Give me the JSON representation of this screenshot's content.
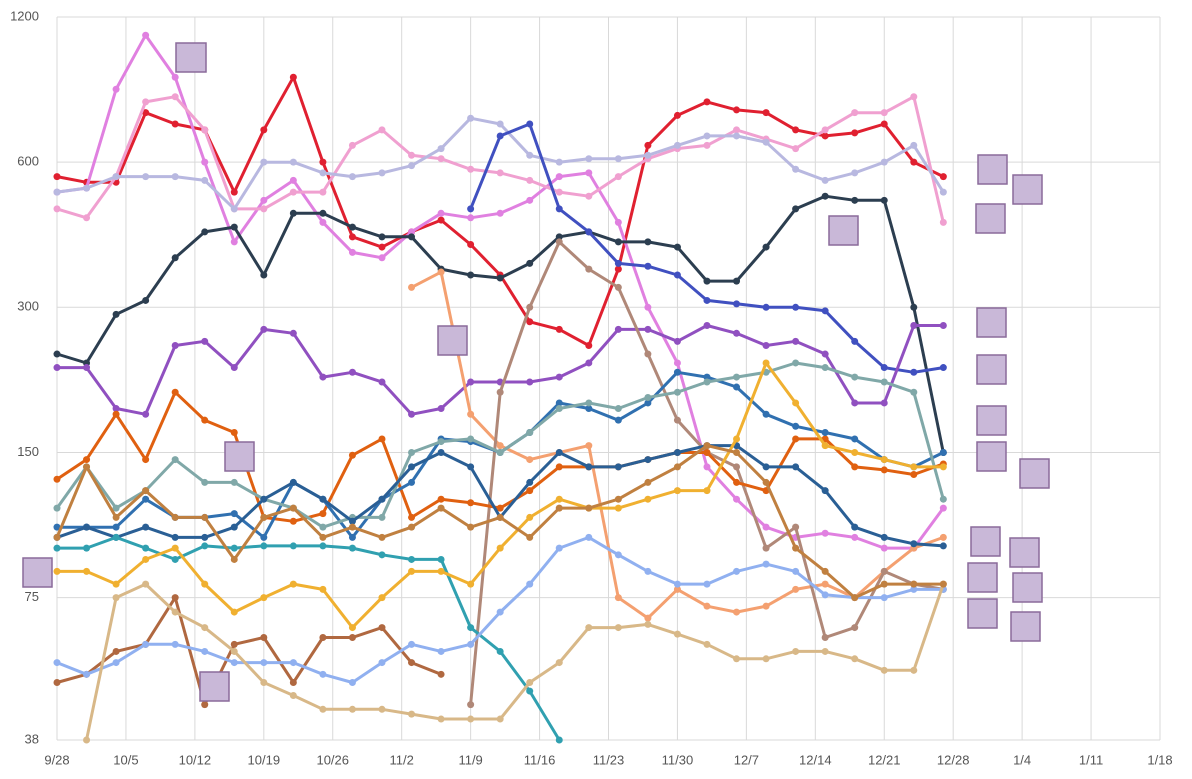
{
  "chart_data": {
    "type": "line",
    "log_y": true,
    "grid": true,
    "x": [
      0,
      3,
      6,
      9,
      12,
      15,
      18,
      21,
      24,
      27,
      30,
      33,
      36,
      39,
      42,
      45,
      48,
      51,
      54,
      57,
      60,
      63,
      66,
      69,
      72,
      75,
      78,
      81,
      84,
      87,
      90
    ],
    "xlim": [
      0,
      112
    ],
    "xticks": [
      {
        "value": 0,
        "label": "9/28"
      },
      {
        "value": 7,
        "label": "10/5"
      },
      {
        "value": 14,
        "label": "10/12"
      },
      {
        "value": 21,
        "label": "10/19"
      },
      {
        "value": 28,
        "label": "10/26"
      },
      {
        "value": 35,
        "label": "11/2"
      },
      {
        "value": 42,
        "label": "11/9"
      },
      {
        "value": 49,
        "label": "11/16"
      },
      {
        "value": 56,
        "label": "11/23"
      },
      {
        "value": 63,
        "label": "11/30"
      },
      {
        "value": 70,
        "label": "12/7"
      },
      {
        "value": 77,
        "label": "12/14"
      },
      {
        "value": 84,
        "label": "12/21"
      },
      {
        "value": 91,
        "label": "12/28"
      },
      {
        "value": 98,
        "label": "1/4"
      },
      {
        "value": 105,
        "label": "1/11"
      },
      {
        "value": 112,
        "label": "1/18"
      }
    ],
    "ylim": [
      38,
      1200
    ],
    "yticks": [
      38,
      75,
      150,
      300,
      600,
      1200
    ],
    "series": [
      {
        "color": "#e02030",
        "values": [
          560,
          545,
          545,
          760,
          720,
          700,
          520,
          700,
          900,
          600,
          420,
          400,
          430,
          455,
          405,
          350,
          280,
          270,
          250,
          360,
          650,
          750,
          800,
          770,
          760,
          700,
          680,
          690,
          720,
          600,
          560
        ]
      },
      {
        "color": "#e080e0",
        "values": [
          520,
          530,
          850,
          1100,
          900,
          600,
          410,
          500,
          550,
          450,
          390,
          380,
          430,
          470,
          460,
          470,
          500,
          560,
          570,
          450,
          300,
          230,
          140,
          120,
          105,
          100,
          102,
          100,
          95,
          95,
          115
        ]
      },
      {
        "color": "#f0a0d0",
        "values": [
          480,
          460,
          560,
          800,
          820,
          700,
          480,
          480,
          520,
          520,
          650,
          700,
          620,
          610,
          580,
          570,
          550,
          520,
          510,
          560,
          610,
          640,
          650,
          700,
          670,
          640,
          700,
          760,
          760,
          820,
          450
        ]
      },
      {
        "color": "#b8b8e0",
        "values": [
          520,
          530,
          560,
          560,
          560,
          550,
          480,
          600,
          600,
          570,
          560,
          570,
          590,
          640,
          740,
          720,
          620,
          600,
          610,
          610,
          620,
          650,
          680,
          680,
          660,
          580,
          550,
          570,
          600,
          650,
          520
        ]
      },
      {
        "color": "#2c3e50",
        "values": [
          240,
          230,
          290,
          310,
          380,
          430,
          440,
          350,
          470,
          470,
          440,
          420,
          420,
          360,
          350,
          345,
          370,
          420,
          430,
          410,
          410,
          400,
          340,
          340,
          400,
          480,
          510,
          500,
          500,
          300,
          150
        ]
      },
      {
        "color": "#4050c0",
        "values": [
          null,
          null,
          null,
          null,
          null,
          null,
          null,
          null,
          null,
          null,
          null,
          null,
          null,
          null,
          480,
          680,
          720,
          480,
          430,
          370,
          365,
          350,
          310,
          305,
          300,
          300,
          295,
          255,
          225,
          220,
          225
        ]
      },
      {
        "color": "#9050c0",
        "values": [
          225,
          225,
          185,
          180,
          250,
          255,
          225,
          270,
          265,
          215,
          220,
          210,
          180,
          185,
          210,
          210,
          210,
          215,
          230,
          270,
          270,
          255,
          275,
          265,
          250,
          255,
          240,
          190,
          190,
          275,
          275
        ]
      },
      {
        "color": "#f4a070",
        "values": [
          null,
          null,
          null,
          null,
          null,
          null,
          null,
          null,
          null,
          null,
          null,
          null,
          330,
          355,
          180,
          155,
          145,
          150,
          155,
          75,
          68,
          78,
          72,
          70,
          72,
          78,
          80,
          75,
          85,
          95,
          100
        ]
      },
      {
        "color": "#b08878",
        "values": [
          null,
          null,
          null,
          null,
          null,
          null,
          null,
          null,
          null,
          null,
          null,
          null,
          null,
          null,
          45,
          200,
          300,
          410,
          360,
          330,
          240,
          175,
          150,
          140,
          95,
          105,
          62,
          65,
          85,
          80,
          78
        ]
      },
      {
        "color": "#b06840",
        "values": [
          50,
          52,
          58,
          60,
          75,
          45,
          60,
          62,
          50,
          62,
          62,
          65,
          55,
          52,
          null,
          null,
          null,
          null,
          null,
          null,
          null,
          null,
          null,
          null,
          null,
          null,
          null,
          null,
          null,
          null,
          null
        ]
      },
      {
        "color": "#e06010",
        "values": [
          132,
          145,
          180,
          145,
          200,
          175,
          165,
          110,
          108,
          112,
          148,
          160,
          110,
          120,
          118,
          115,
          125,
          140,
          140,
          140,
          145,
          150,
          150,
          130,
          125,
          160,
          160,
          140,
          138,
          135,
          142
        ]
      },
      {
        "color": "#3070b0",
        "values": [
          105,
          105,
          105,
          120,
          110,
          110,
          112,
          100,
          130,
          120,
          100,
          120,
          130,
          160,
          158,
          150,
          165,
          190,
          185,
          175,
          190,
          220,
          215,
          205,
          180,
          170,
          165,
          160,
          145,
          140,
          150
        ]
      },
      {
        "color": "#80a8a8",
        "values": [
          115,
          140,
          115,
          125,
          145,
          130,
          130,
          120,
          115,
          105,
          110,
          110,
          150,
          158,
          160,
          150,
          165,
          185,
          190,
          185,
          195,
          200,
          210,
          215,
          220,
          230,
          225,
          215,
          210,
          200,
          120
        ]
      },
      {
        "color": "#2a5f95",
        "values": [
          100,
          105,
          100,
          105,
          100,
          100,
          105,
          120,
          130,
          120,
          108,
          120,
          140,
          150,
          140,
          110,
          130,
          150,
          140,
          140,
          145,
          150,
          155,
          155,
          140,
          140,
          125,
          105,
          100,
          97,
          96
        ]
      },
      {
        "color": "#30a0b0",
        "values": [
          95,
          95,
          100,
          95,
          90,
          96,
          95,
          96,
          96,
          96,
          95,
          92,
          90,
          90,
          65,
          58,
          48,
          38,
          null,
          null,
          null,
          null,
          null,
          null,
          null,
          null,
          null,
          null,
          null,
          null,
          null
        ]
      },
      {
        "color": "#f0b030",
        "values": [
          85,
          85,
          80,
          90,
          95,
          80,
          70,
          75,
          80,
          78,
          65,
          75,
          85,
          85,
          80,
          95,
          110,
          120,
          115,
          115,
          120,
          125,
          125,
          160,
          230,
          190,
          155,
          150,
          145,
          140,
          140
        ]
      },
      {
        "color": "#90b0f0",
        "values": [
          55,
          52,
          55,
          60,
          60,
          58,
          55,
          55,
          55,
          52,
          50,
          55,
          60,
          58,
          60,
          70,
          80,
          95,
          100,
          92,
          85,
          80,
          80,
          85,
          88,
          85,
          76,
          75,
          75,
          78,
          78
        ]
      },
      {
        "color": "#d8b888",
        "values": [
          null,
          38,
          75,
          80,
          70,
          65,
          58,
          50,
          47,
          44,
          44,
          44,
          43,
          42,
          42,
          42,
          50,
          55,
          65,
          65,
          66,
          63,
          60,
          56,
          56,
          58,
          58,
          56,
          53,
          53,
          80
        ]
      },
      {
        "color": "#c08040",
        "values": [
          100,
          140,
          110,
          125,
          110,
          110,
          90,
          110,
          115,
          100,
          105,
          100,
          105,
          115,
          105,
          110,
          100,
          115,
          115,
          120,
          130,
          140,
          155,
          150,
          130,
          95,
          85,
          75,
          80,
          80,
          80
        ]
      }
    ]
  }
}
